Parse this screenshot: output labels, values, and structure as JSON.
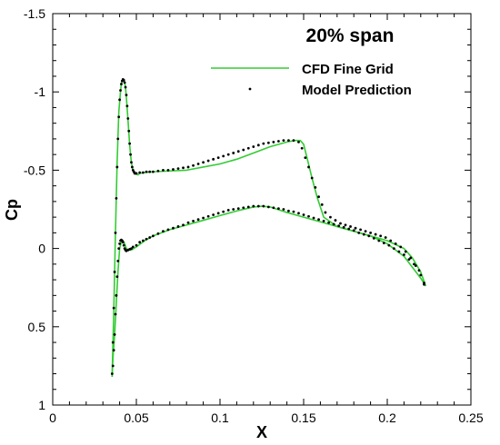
{
  "chart_data": {
    "type": "line",
    "title": "20% span",
    "xlabel": "X",
    "ylabel": "Cp",
    "xlim": [
      0,
      0.25
    ],
    "ylim": [
      1,
      -1.5
    ],
    "y_inverted": true,
    "x_ticks": [
      0,
      0.05,
      0.1,
      0.15,
      0.2,
      0.25
    ],
    "x_tick_labels": [
      "0",
      "0.05",
      "0.1",
      "0.15",
      "0.2",
      "0.25"
    ],
    "y_ticks": [
      1,
      0.5,
      0,
      -0.5,
      -1,
      -1.5
    ],
    "y_tick_labels": [
      "1",
      "0.5",
      "0",
      "-0.5",
      "-1",
      "-1.5"
    ],
    "grid": false,
    "legend_position": "top-right",
    "series": [
      {
        "name": "CFD Fine Grid",
        "style": "line",
        "color": "#33cc33",
        "segments": [
          {
            "x": [
              0.0355,
              0.0365,
              0.0375,
              0.0385,
              0.0395,
              0.0405,
              0.041,
              0.0415,
              0.042,
              0.0425,
              0.043,
              0.0435,
              0.044,
              0.045,
              0.046,
              0.047,
              0.048,
              0.049,
              0.05,
              0.051,
              0.052,
              0.055,
              0.06,
              0.07,
              0.08,
              0.09,
              0.1,
              0.11,
              0.12,
              0.13,
              0.14,
              0.145,
              0.148,
              0.15,
              0.152,
              0.155,
              0.158,
              0.162,
              0.17,
              0.18,
              0.19,
              0.2,
              0.21,
              0.215,
              0.22,
              0.223
            ],
            "y": [
              0.82,
              0.4,
              -0.1,
              -0.55,
              -0.87,
              -1.0,
              -1.05,
              -1.07,
              -1.075,
              -1.07,
              -1.06,
              -1.03,
              -0.97,
              -0.82,
              -0.66,
              -0.55,
              -0.5,
              -0.48,
              -0.475,
              -0.47,
              -0.48,
              -0.485,
              -0.49,
              -0.495,
              -0.5,
              -0.52,
              -0.54,
              -0.57,
              -0.61,
              -0.65,
              -0.68,
              -0.69,
              -0.69,
              -0.665,
              -0.58,
              -0.45,
              -0.33,
              -0.2,
              -0.14,
              -0.11,
              -0.08,
              -0.03,
              0.05,
              0.12,
              0.19,
              0.24
            ]
          },
          {
            "x": [
              0.0355,
              0.036,
              0.037,
              0.038,
              0.039,
              0.04,
              0.041,
              0.042,
              0.043,
              0.044,
              0.045,
              0.047,
              0.05,
              0.055,
              0.06,
              0.07,
              0.08,
              0.09,
              0.1,
              0.11,
              0.12,
              0.125,
              0.13,
              0.14,
              0.15,
              0.16,
              0.17,
              0.18,
              0.19,
              0.2,
              0.21,
              0.215,
              0.22,
              0.223
            ],
            "y": [
              0.82,
              0.7,
              0.55,
              0.35,
              0.15,
              0.0,
              -0.04,
              -0.05,
              -0.03,
              0.0,
              0.01,
              0.01,
              -0.01,
              -0.05,
              -0.08,
              -0.12,
              -0.15,
              -0.18,
              -0.21,
              -0.24,
              -0.265,
              -0.27,
              -0.265,
              -0.23,
              -0.2,
              -0.17,
              -0.14,
              -0.11,
              -0.08,
              -0.05,
              0.0,
              0.06,
              0.15,
              0.24
            ]
          }
        ]
      },
      {
        "name": "Model Prediction",
        "style": "markers",
        "color": "#000000",
        "segments": [
          {
            "x": [
              0.0355,
              0.036,
              0.0365,
              0.037,
              0.0375,
              0.038,
              0.0385,
              0.039,
              0.0395,
              0.04,
              0.0405,
              0.041,
              0.0415,
              0.042,
              0.0425,
              0.043,
              0.0435,
              0.044,
              0.0445,
              0.045,
              0.0455,
              0.046,
              0.0465,
              0.047,
              0.0475,
              0.048,
              0.0485,
              0.049,
              0.0495,
              0.05,
              0.052,
              0.054,
              0.056,
              0.058,
              0.06,
              0.063,
              0.066,
              0.069,
              0.072,
              0.075,
              0.078,
              0.081,
              0.084,
              0.087,
              0.09,
              0.093,
              0.096,
              0.099,
              0.102,
              0.105,
              0.108,
              0.111,
              0.114,
              0.117,
              0.12,
              0.123,
              0.126,
              0.129,
              0.132,
              0.135,
              0.138,
              0.141,
              0.144,
              0.147,
              0.149,
              0.151,
              0.153,
              0.155,
              0.157,
              0.159,
              0.161,
              0.163,
              0.166,
              0.169,
              0.172,
              0.175,
              0.178,
              0.181,
              0.184,
              0.187,
              0.19,
              0.193,
              0.196,
              0.199,
              0.202,
              0.205,
              0.208,
              0.211,
              0.214,
              0.217,
              0.22,
              0.222
            ],
            "y": [
              0.8,
              0.6,
              0.38,
              0.15,
              -0.1,
              -0.32,
              -0.52,
              -0.7,
              -0.84,
              -0.95,
              -1.01,
              -1.05,
              -1.07,
              -1.08,
              -1.075,
              -1.06,
              -1.03,
              -0.98,
              -0.91,
              -0.83,
              -0.75,
              -0.67,
              -0.6,
              -0.55,
              -0.52,
              -0.5,
              -0.49,
              -0.48,
              -0.48,
              -0.48,
              -0.485,
              -0.485,
              -0.49,
              -0.49,
              -0.49,
              -0.495,
              -0.5,
              -0.5,
              -0.505,
              -0.51,
              -0.515,
              -0.52,
              -0.53,
              -0.54,
              -0.55,
              -0.56,
              -0.57,
              -0.58,
              -0.59,
              -0.6,
              -0.61,
              -0.62,
              -0.63,
              -0.64,
              -0.65,
              -0.66,
              -0.67,
              -0.675,
              -0.68,
              -0.685,
              -0.69,
              -0.69,
              -0.69,
              -0.68,
              -0.64,
              -0.58,
              -0.52,
              -0.45,
              -0.39,
              -0.33,
              -0.28,
              -0.23,
              -0.2,
              -0.18,
              -0.16,
              -0.15,
              -0.14,
              -0.13,
              -0.12,
              -0.11,
              -0.1,
              -0.09,
              -0.08,
              -0.07,
              -0.05,
              -0.03,
              -0.01,
              0.02,
              0.06,
              0.11,
              0.17,
              0.23
            ]
          },
          {
            "x": [
              0.036,
              0.0365,
              0.037,
              0.0375,
              0.038,
              0.0385,
              0.039,
              0.0395,
              0.04,
              0.0405,
              0.041,
              0.0415,
              0.042,
              0.0425,
              0.043,
              0.0435,
              0.044,
              0.045,
              0.046,
              0.047,
              0.048,
              0.05,
              0.052,
              0.054,
              0.056,
              0.058,
              0.06,
              0.063,
              0.066,
              0.069,
              0.072,
              0.075,
              0.078,
              0.081,
              0.084,
              0.087,
              0.09,
              0.093,
              0.096,
              0.099,
              0.102,
              0.105,
              0.108,
              0.111,
              0.114,
              0.117,
              0.12,
              0.123,
              0.126,
              0.129,
              0.132,
              0.135,
              0.138,
              0.141,
              0.144,
              0.147,
              0.15,
              0.153,
              0.156,
              0.159,
              0.162,
              0.165,
              0.168,
              0.171,
              0.174,
              0.177,
              0.18,
              0.183,
              0.186,
              0.189,
              0.192,
              0.195,
              0.198,
              0.201,
              0.204,
              0.207,
              0.21,
              0.213,
              0.216,
              0.219,
              0.222
            ],
            "y": [
              0.75,
              0.65,
              0.55,
              0.42,
              0.3,
              0.18,
              0.08,
              0.0,
              -0.03,
              -0.05,
              -0.055,
              -0.05,
              -0.04,
              -0.02,
              0.0,
              0.01,
              0.015,
              0.01,
              0.005,
              0.0,
              -0.01,
              -0.02,
              -0.04,
              -0.05,
              -0.06,
              -0.07,
              -0.08,
              -0.095,
              -0.11,
              -0.12,
              -0.13,
              -0.14,
              -0.15,
              -0.165,
              -0.175,
              -0.185,
              -0.195,
              -0.205,
              -0.215,
              -0.225,
              -0.235,
              -0.245,
              -0.25,
              -0.255,
              -0.26,
              -0.265,
              -0.27,
              -0.27,
              -0.27,
              -0.265,
              -0.26,
              -0.255,
              -0.25,
              -0.24,
              -0.235,
              -0.225,
              -0.215,
              -0.205,
              -0.195,
              -0.185,
              -0.175,
              -0.165,
              -0.155,
              -0.145,
              -0.135,
              -0.125,
              -0.115,
              -0.1,
              -0.09,
              -0.08,
              -0.065,
              -0.05,
              -0.035,
              -0.02,
              0.0,
              0.02,
              0.04,
              0.07,
              0.1,
              0.14,
              0.22
            ]
          }
        ]
      }
    ]
  }
}
